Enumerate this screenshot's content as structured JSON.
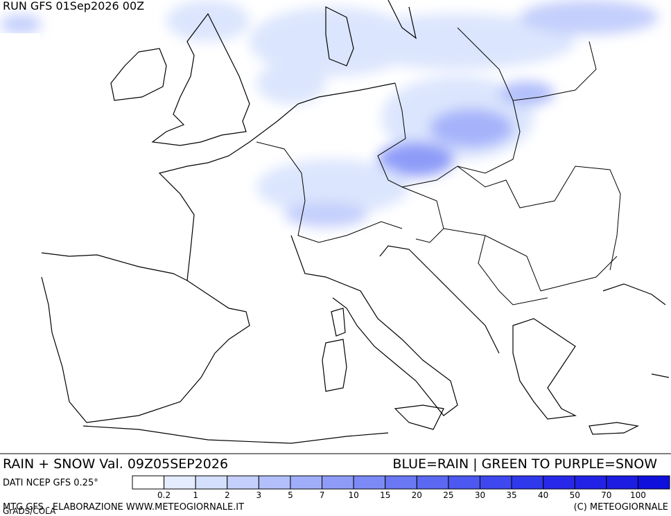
{
  "header": {
    "title": "RUN GFS 01Sep2026 00Z"
  },
  "footer": {
    "left": "RAIN + SNOW Val. 09Z05SEP2026",
    "right": "BLUE=RAIN | GREEN TO PURPLE=SNOW",
    "source": "DATI NCEP GFS 0.25°",
    "credit": "MTG GFS - ELABORAZIONE WWW.METEOGIORNALE.IT",
    "software": "GrADS/COLA",
    "copyright": "(C) METEOGIORNALE"
  },
  "legend": {
    "colors": [
      "#ffffff",
      "#e4ecfe",
      "#d4dffd",
      "#c4cffc",
      "#b2bffb",
      "#a0aefa",
      "#8e9cf8",
      "#7c8af6",
      "#6a78f4",
      "#5a68f2",
      "#4c58f0",
      "#3e48ee",
      "#3038ec",
      "#2828ea",
      "#2222e6",
      "#1c1ce2",
      "#1010dc"
    ],
    "ticks": [
      0.2,
      1,
      2,
      3,
      5,
      7,
      10,
      15,
      20,
      25,
      30,
      35,
      40,
      50,
      70,
      100
    ]
  }
}
